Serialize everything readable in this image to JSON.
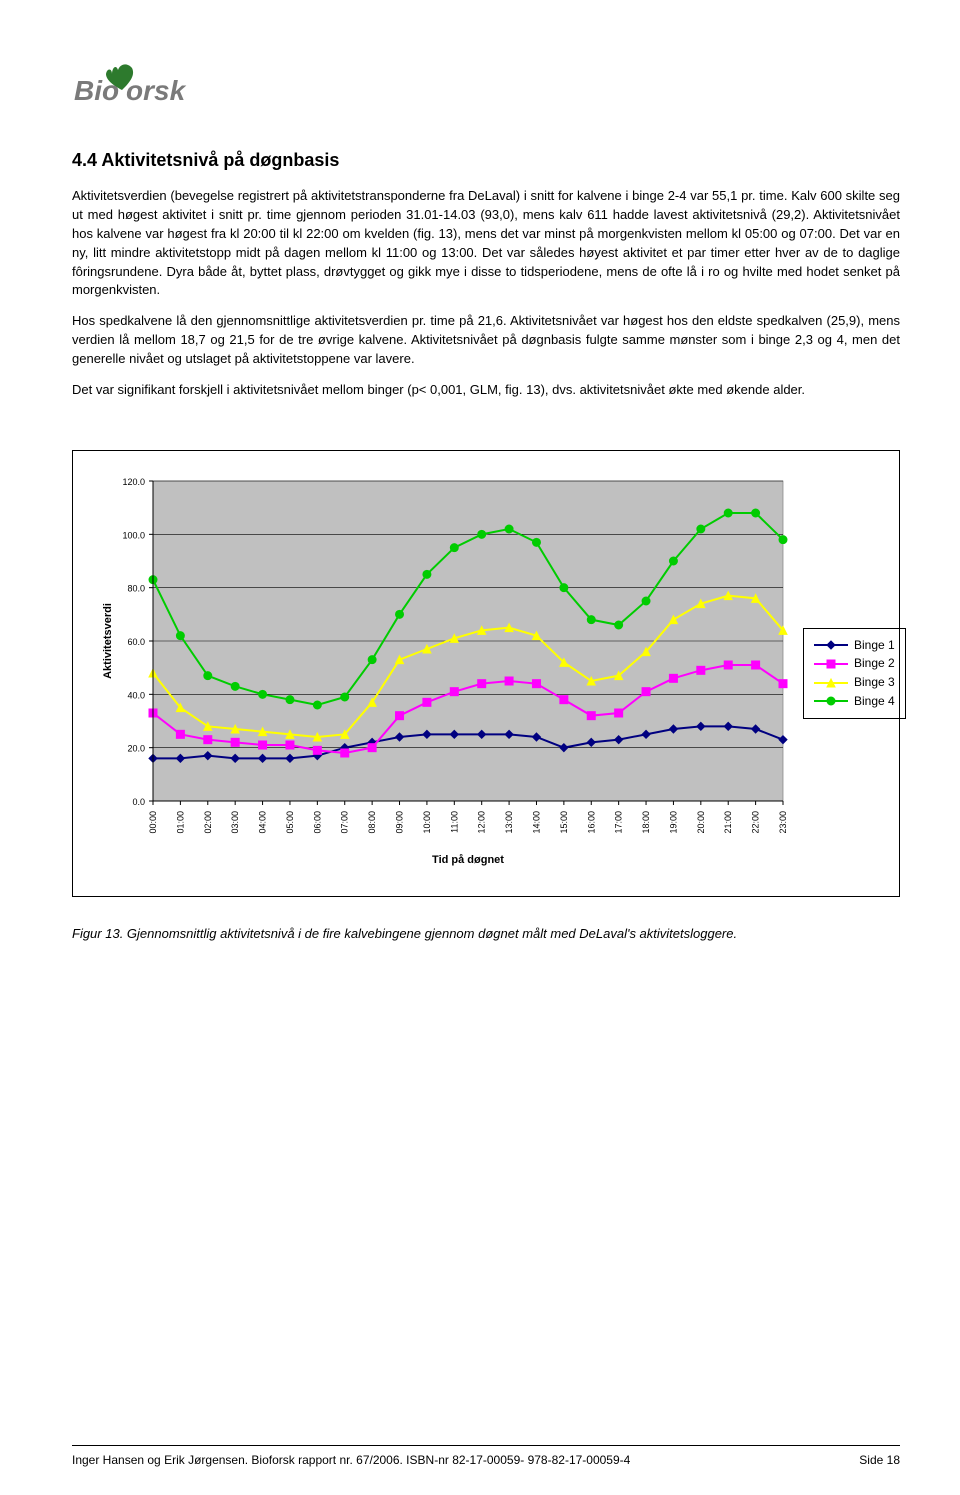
{
  "logo": {
    "text": "Bioforsk",
    "leaf_color": "#2d7a2d",
    "text_color": "#7a7a7a"
  },
  "heading": "4.4   Aktivitetsnivå på døgnbasis",
  "paragraphs": [
    "Aktivitetsverdien (bevegelse registrert på aktivitetstransponderne fra DeLaval) i snitt for kalvene i binge 2-4 var 55,1 pr. time. Kalv 600 skilte seg ut med høgest aktivitet i snitt pr. time gjennom perioden 31.01-14.03 (93,0), mens kalv 611 hadde lavest aktivitetsnivå (29,2). Aktivitetsnivået hos kalvene var høgest fra kl 20:00 til kl 22:00 om kvelden (fig. 13), mens det var minst på morgenkvisten mellom kl 05:00 og 07:00. Det var en ny, litt mindre aktivitetstopp midt på dagen mellom kl 11:00 og 13:00. Det var således høyest aktivitet et par timer etter hver av de to daglige fôringsrundene. Dyra både åt, byttet plass, drøvtygget og gikk mye i disse to tidsperiodene, mens de ofte lå i ro og hvilte med hodet senket på morgenkvisten.",
    "Hos spedkalvene lå den gjennomsnittlige aktivitetsverdien pr. time på 21,6. Aktivitetsnivået var høgest hos den eldste spedkalven (25,9), mens verdien lå mellom 18,7 og 21,5 for de tre øvrige kalvene. Aktivitetsnivået på døgnbasis fulgte samme mønster som i binge 2,3 og 4, men det generelle nivået og utslaget på aktivitetstoppene var lavere.",
    "Det var signifikant forskjell i aktivitetsnivået mellom binger (p< 0,001, GLM, fig. 13), dvs. aktivitetsnivået økte med økende alder."
  ],
  "chart": {
    "type": "line",
    "y_label": "Aktivitetsverdi",
    "x_label": "Tid på døgnet",
    "ylim": [
      0,
      120
    ],
    "ytick_step": 20,
    "yticks": [
      "0.0",
      "20.0",
      "40.0",
      "60.0",
      "80.0",
      "100.0",
      "120.0"
    ],
    "categories": [
      "00:00",
      "01:00",
      "02:00",
      "03:00",
      "04:00",
      "05:00",
      "06:00",
      "07:00",
      "08:00",
      "09:00",
      "10:00",
      "11:00",
      "12:00",
      "13:00",
      "14:00",
      "15:00",
      "16:00",
      "17:00",
      "18:00",
      "19:00",
      "20:00",
      "21:00",
      "22:00",
      "23:00"
    ],
    "background_color": "#c0c0c0",
    "grid_color": "#000000",
    "border_color": "#808080",
    "series": [
      {
        "name": "Binge 1",
        "color": "#000080",
        "marker": "diamond",
        "values": [
          16,
          16,
          17,
          16,
          16,
          16,
          17,
          20,
          22,
          24,
          25,
          25,
          25,
          25,
          24,
          20,
          22,
          23,
          25,
          27,
          28,
          28,
          27,
          23
        ]
      },
      {
        "name": "Binge 2",
        "color": "#ff00ff",
        "marker": "square",
        "values": [
          33,
          25,
          23,
          22,
          21,
          21,
          19,
          18,
          20,
          32,
          37,
          41,
          44,
          45,
          44,
          38,
          32,
          33,
          41,
          46,
          49,
          51,
          51,
          44
        ]
      },
      {
        "name": "Binge 3",
        "color": "#ffff00",
        "marker": "triangle",
        "values": [
          48,
          35,
          28,
          27,
          26,
          25,
          24,
          25,
          37,
          53,
          57,
          61,
          64,
          65,
          62,
          52,
          45,
          47,
          56,
          68,
          74,
          77,
          76,
          64
        ]
      },
      {
        "name": "Binge 4",
        "color": "#00cc00",
        "marker": "circle",
        "values": [
          83,
          62,
          47,
          43,
          40,
          38,
          36,
          39,
          53,
          70,
          85,
          95,
          100,
          102,
          97,
          80,
          68,
          66,
          75,
          90,
          102,
          108,
          108,
          98
        ]
      }
    ],
    "legend_labels": [
      "Binge 1",
      "Binge 2",
      "Binge 3",
      "Binge 4"
    ],
    "label_fontsize": 11,
    "tick_fontsize": 9
  },
  "caption": "Figur 13. Gjennomsnittlig aktivitetsnivå i de fire kalvebingene gjennom døgnet målt med DeLaval's aktivitetsloggere.",
  "footer": {
    "left": "Inger Hansen og Erik Jørgensen. Bioforsk rapport nr. 67/2006. ISBN-nr 82-17-00059-   978-82-17-00059-4",
    "right": "Side 18"
  }
}
